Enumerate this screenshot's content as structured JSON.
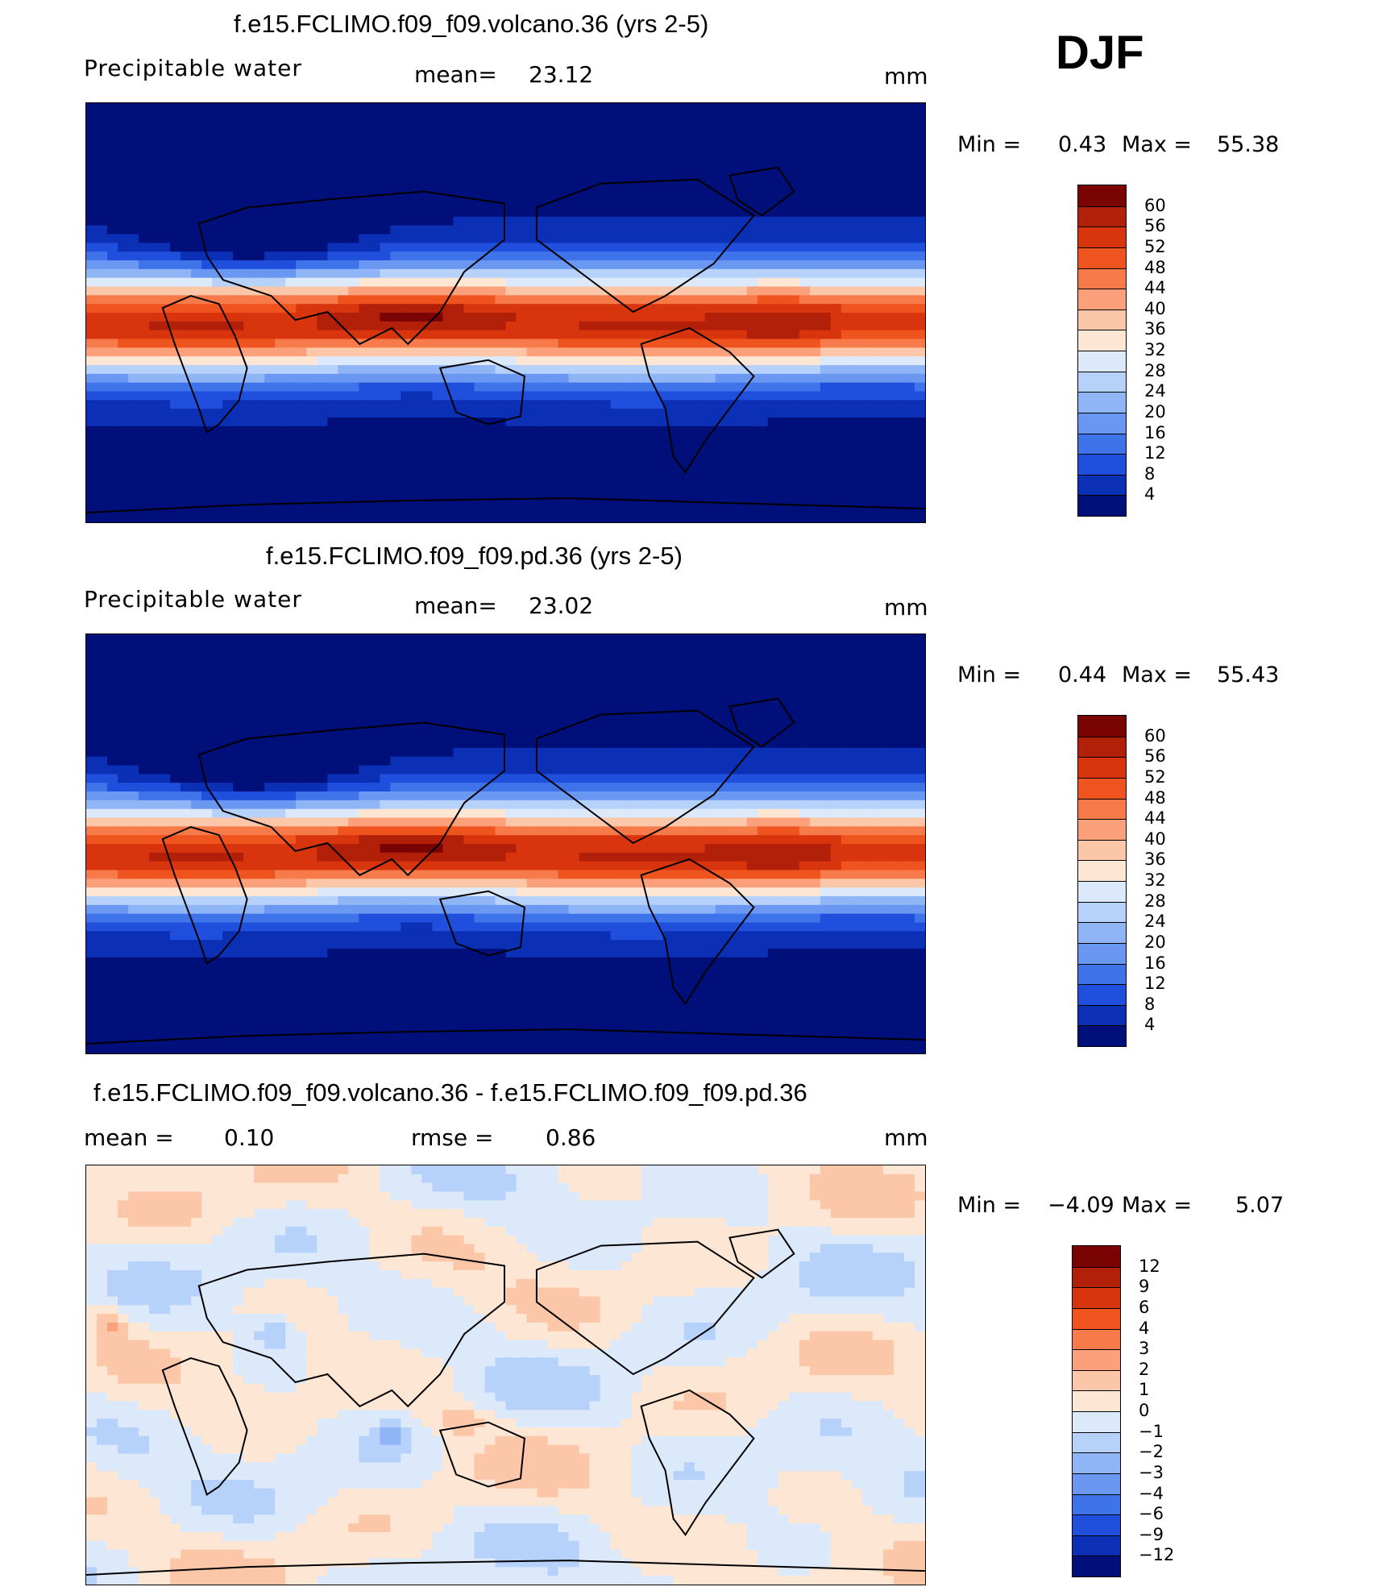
{
  "season": "DJF",
  "panels": [
    {
      "title": "f.e15.FCLIMO.f09_f09.volcano.36 (yrs 2-5)",
      "left_label": "Precipitable  water",
      "mid_label": "mean=",
      "mid_value": "23.12",
      "units": "mm",
      "min_label": "Min  =",
      "min_value": "0.43",
      "max_label": "Max  =",
      "max_value": "55.38",
      "kind": "field"
    },
    {
      "title": "f.e15.FCLIMO.f09_f09.pd.36 (yrs 2-5)",
      "left_label": "Precipitable  water",
      "mid_label": "mean=",
      "mid_value": "23.02",
      "units": "mm",
      "min_label": "Min  =",
      "min_value": "0.44",
      "max_label": "Max  =",
      "max_value": "55.43",
      "kind": "field"
    },
    {
      "title": "f.e15.FCLIMO.f09_f09.volcano.36 - f.e15.FCLIMO.f09_f09.pd.36",
      "left_label": "mean  =",
      "left_value": "0.10",
      "mid_label": "rmse  =",
      "mid_value": "0.86",
      "units": "mm",
      "min_label": "Min  =",
      "min_value": "−4.09",
      "max_label": "Max  =",
      "max_value": "5.07",
      "kind": "diff"
    }
  ],
  "colorbar_field": {
    "labels": [
      "60",
      "56",
      "52",
      "48",
      "44",
      "40",
      "36",
      "32",
      "28",
      "24",
      "20",
      "16",
      "12",
      "8",
      "4"
    ],
    "colors": [
      "#7a0403",
      "#b3200a",
      "#d8350f",
      "#f0541e",
      "#f77b4a",
      "#fba07b",
      "#fcc7a8",
      "#fde6d3",
      "#dbe9fb",
      "#b6d1fa",
      "#8fb5f6",
      "#6a97f1",
      "#3f73ea",
      "#1f4fdc",
      "#0b2fb5",
      "#000f7a"
    ]
  },
  "colorbar_diff": {
    "labels": [
      "12",
      "9",
      "6",
      "4",
      "3",
      "2",
      "1",
      "0",
      "−1",
      "−2",
      "−3",
      "−4",
      "−6",
      "−9",
      "−12"
    ],
    "colors": [
      "#7a0403",
      "#b3200a",
      "#d8350f",
      "#f0541e",
      "#f77b4a",
      "#fba07b",
      "#fcc7a8",
      "#fde6d3",
      "#dbe9fb",
      "#b6d1fa",
      "#8fb5f6",
      "#6a97f1",
      "#3f73ea",
      "#1f4fdc",
      "#0b2fb5",
      "#000f7a"
    ]
  }
}
